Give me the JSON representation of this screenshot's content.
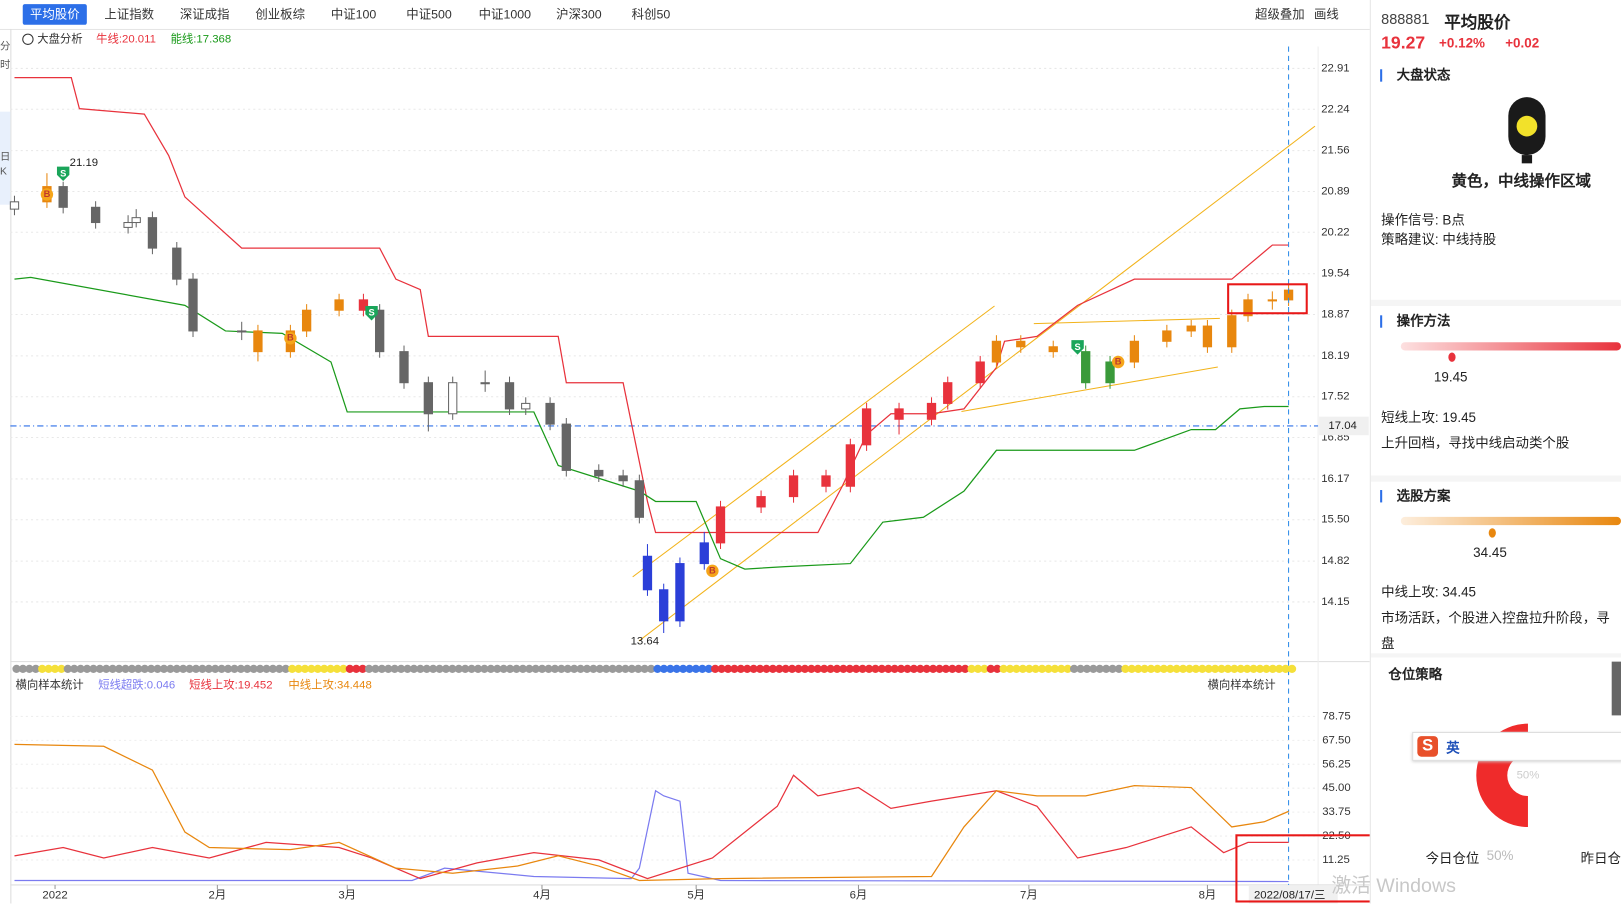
{
  "tabs": [
    "平均股价",
    "上证指数",
    "深证成指",
    "创业板综",
    "中证100",
    "中证500",
    "中证1000",
    "沪深300",
    "科创50"
  ],
  "toolbar": [
    "超级叠加",
    "画线"
  ],
  "side_tabs": [
    "分",
    "时",
    "日",
    "K"
  ],
  "chart_data": [
    {
      "type": "candlestick",
      "title": "大盘分析",
      "xlim": [
        0,
        158
      ],
      "ylim": [
        13.17,
        23.27
      ],
      "yticks": [
        22.91,
        22.24,
        21.56,
        20.89,
        20.22,
        19.54,
        18.87,
        18.19,
        17.52,
        16.85,
        16.17,
        {
          "value": 15.5,
          "label": "15.50"
        },
        14.82,
        14.15
      ],
      "grid": true,
      "candles": {
        "x": [
          0,
          4,
          6,
          10,
          14,
          15,
          17,
          20,
          22,
          28,
          30,
          34,
          36,
          40,
          43,
          45,
          48,
          51,
          54,
          58,
          61,
          63,
          66,
          68,
          72,
          75,
          77,
          78,
          80,
          82,
          85,
          87,
          92,
          96,
          100,
          103,
          105,
          109,
          113,
          115,
          119,
          121,
          124,
          128,
          132,
          135,
          138,
          142,
          145,
          147,
          150,
          152,
          155,
          157
        ],
        "ohlc": [
          [
            20.6,
            20.82,
            20.5,
            20.72
          ],
          [
            20.72,
            21.19,
            20.62,
            20.97
          ],
          [
            20.97,
            21.05,
            20.53,
            20.63
          ],
          [
            20.63,
            20.73,
            20.28,
            20.38
          ],
          [
            20.3,
            20.5,
            20.2,
            20.38
          ],
          [
            20.38,
            20.6,
            20.3,
            20.46
          ],
          [
            20.46,
            20.56,
            19.86,
            19.96
          ],
          [
            19.96,
            20.06,
            19.35,
            19.45
          ],
          [
            19.45,
            19.55,
            18.5,
            18.6
          ],
          [
            18.6,
            18.75,
            18.45,
            18.6
          ],
          [
            18.6,
            18.7,
            18.1,
            18.26
          ],
          [
            18.26,
            18.7,
            18.16,
            18.6
          ],
          [
            18.6,
            19.04,
            18.5,
            18.94
          ],
          [
            18.94,
            19.21,
            18.84,
            19.11
          ],
          [
            19.11,
            19.21,
            18.84,
            18.94
          ],
          [
            18.94,
            19.04,
            18.16,
            18.26
          ],
          [
            18.26,
            18.36,
            17.65,
            17.75
          ],
          [
            17.75,
            17.85,
            16.95,
            17.24
          ],
          [
            17.24,
            17.85,
            17.14,
            17.75
          ],
          [
            17.75,
            17.95,
            17.6,
            17.75
          ],
          [
            17.75,
            17.85,
            17.22,
            17.32
          ],
          [
            17.32,
            17.51,
            17.22,
            17.41
          ],
          [
            17.41,
            17.51,
            16.97,
            17.07
          ],
          [
            17.07,
            17.17,
            16.21,
            16.31
          ],
          [
            16.31,
            16.41,
            16.12,
            16.22
          ],
          [
            16.22,
            16.32,
            16.04,
            16.14
          ],
          [
            16.14,
            16.24,
            15.44,
            15.54
          ],
          [
            14.9,
            15.1,
            14.25,
            14.35
          ],
          [
            14.35,
            14.45,
            13.64,
            13.84
          ],
          [
            13.84,
            14.88,
            13.74,
            14.78
          ],
          [
            14.78,
            15.3,
            14.68,
            15.12
          ],
          [
            15.12,
            15.81,
            15.02,
            15.71
          ],
          [
            15.71,
            15.98,
            15.61,
            15.88
          ],
          [
            15.88,
            16.32,
            15.78,
            16.22
          ],
          [
            16.22,
            16.32,
            15.95,
            16.05
          ],
          [
            16.05,
            16.83,
            15.95,
            16.73
          ],
          [
            16.73,
            17.42,
            16.63,
            17.32
          ],
          [
            17.32,
            17.42,
            16.9,
            17.15
          ],
          [
            17.15,
            17.51,
            17.05,
            17.41
          ],
          [
            17.41,
            17.85,
            17.31,
            17.75
          ],
          [
            17.75,
            18.19,
            17.65,
            18.09
          ],
          [
            18.09,
            18.53,
            17.99,
            18.43
          ],
          [
            18.43,
            18.53,
            18.24,
            18.34
          ],
          [
            18.34,
            18.44,
            18.16,
            18.26
          ],
          [
            18.26,
            18.36,
            17.65,
            17.75
          ],
          [
            17.75,
            18.19,
            17.65,
            18.09
          ],
          [
            18.09,
            18.53,
            17.99,
            18.43
          ],
          [
            18.43,
            18.7,
            18.33,
            18.6
          ],
          [
            18.6,
            18.78,
            18.5,
            18.68
          ],
          [
            18.68,
            18.78,
            18.24,
            18.34
          ],
          [
            18.34,
            18.95,
            18.24,
            18.85
          ],
          [
            18.85,
            19.21,
            18.75,
            19.11
          ],
          [
            19.11,
            19.25,
            18.95,
            19.11
          ],
          [
            19.11,
            19.37,
            19.01,
            19.27
          ]
        ],
        "colors": [
          "#666",
          "#e8870e",
          "#666",
          "#666",
          "#666",
          "#666",
          "#666",
          "#666",
          "#666",
          "#666",
          "#e8870e",
          "#e8870e",
          "#e8870e",
          "#e8870e",
          "#e8323c",
          "#666",
          "#666",
          "#666",
          "#666",
          "#666",
          "#666",
          "#666",
          "#666",
          "#666",
          "#666",
          "#666",
          "#666",
          "#2b3fd8",
          "#2b3fd8",
          "#2b3fd8",
          "#2b3fd8",
          "#e8323c",
          "#e8323c",
          "#e8323c",
          "#e8323c",
          "#e8323c",
          "#e8323c",
          "#e8323c",
          "#e8323c",
          "#e8323c",
          "#e8323c",
          "#e8870e",
          "#e8870e",
          "#e8870e",
          "#3a9a3a",
          "#3a9a3a",
          "#e8870e",
          "#e8870e",
          "#e8870e",
          "#e8870e",
          "#e8870e",
          "#e8870e",
          "#e8870e",
          "#e8870e"
        ]
      },
      "series": [
        {
          "name": "牛线:20.011",
          "color": "#e8323c",
          "x": [
            0,
            7,
            8,
            16,
            19,
            21,
            28,
            45,
            47,
            50,
            51,
            67,
            68,
            75,
            78,
            79,
            99,
            102,
            105,
            108,
            113,
            117,
            121,
            122,
            126,
            131,
            138,
            150,
            155,
            157
          ],
          "values": [
            22.76,
            22.76,
            22.25,
            22.16,
            21.48,
            20.8,
            19.96,
            19.96,
            19.45,
            19.28,
            18.51,
            18.51,
            17.75,
            17.75,
            15.8,
            15.29,
            15.29,
            16.05,
            16.9,
            17.24,
            17.24,
            17.32,
            18.0,
            18.43,
            18.51,
            19.02,
            19.45,
            19.45,
            20.01,
            20.01
          ]
        },
        {
          "name": "能线:17.368",
          "color": "#1a9a1a",
          "x": [
            0,
            2,
            21,
            26,
            33,
            39,
            41,
            64,
            67,
            77,
            79,
            84,
            87,
            90,
            95,
            103,
            107,
            112,
            117,
            121,
            138,
            145,
            148,
            151,
            154,
            157
          ],
          "values": [
            19.45,
            19.48,
            19.02,
            18.6,
            18.56,
            18.09,
            17.27,
            17.27,
            16.39,
            15.97,
            15.8,
            15.8,
            14.86,
            14.69,
            14.73,
            14.78,
            15.46,
            15.54,
            15.97,
            16.64,
            16.64,
            16.98,
            16.98,
            17.32,
            17.36,
            17.36
          ]
        }
      ],
      "ref_line": {
        "value": 17.04,
        "label": "17.04"
      },
      "annotations": [
        {
          "x": 4,
          "value": 21.19
        },
        {
          "x": 80,
          "value": 13.64
        }
      ],
      "signals": [
        {
          "label": "S",
          "x": 6,
          "value": 21.18
        },
        {
          "label": "B",
          "x": 4,
          "value": 20.84
        },
        {
          "label": "B",
          "x": 34,
          "value": 18.48
        },
        {
          "label": "S",
          "x": 44,
          "value": 18.89
        },
        {
          "label": "B",
          "x": 86,
          "value": 14.66
        },
        {
          "label": "S",
          "x": 131,
          "value": 18.33
        },
        {
          "label": "B",
          "x": 136,
          "value": 18.09
        }
      ]
    },
    {
      "type": "line",
      "title": "横向样本统计",
      "xlim": [
        0,
        158
      ],
      "ylim": [
        0,
        87.5
      ],
      "yticks": [
        78.75,
        {
          "value": 67.5,
          "label": "67.50"
        },
        56.25,
        {
          "value": 45,
          "label": "45.00"
        },
        33.75,
        {
          "value": 22.5,
          "label": "22.50"
        },
        11.25
      ],
      "xticks": [
        {
          "value": 5,
          "label": "2022"
        },
        {
          "value": 25,
          "label": "2月"
        },
        {
          "value": 41,
          "label": "3月"
        },
        {
          "value": 65,
          "label": "4月"
        },
        {
          "value": 84,
          "label": "5月"
        },
        {
          "value": 104,
          "label": "6月"
        },
        {
          "value": 125,
          "label": "7月"
        },
        {
          "value": 147,
          "label": "8月"
        }
      ],
      "cursor_label": "2022/08/17/三",
      "series": [
        {
          "name": "短线超跌:0.046",
          "color": "#7b7bf0",
          "x": [
            0,
            49,
            53,
            64,
            76,
            77,
            79,
            80,
            82,
            83,
            87,
            157
          ],
          "values": [
            1.6,
            1.6,
            7.4,
            3.5,
            2.5,
            7.4,
            43.8,
            41.4,
            38.9,
            5.0,
            1.6,
            1.1
          ]
        },
        {
          "name": "短线上攻:19.452",
          "color": "#e8323c",
          "x": [
            0,
            6,
            11,
            17,
            24,
            31,
            40,
            44,
            50,
            57,
            64,
            72,
            78,
            86,
            94,
            96,
            99,
            104,
            108,
            113,
            121,
            126,
            131,
            137,
            145,
            149,
            152,
            157
          ],
          "values": [
            13.2,
            17.1,
            12.2,
            17.1,
            12.2,
            19.5,
            17.1,
            12.2,
            2.5,
            9.9,
            14.7,
            11.3,
            2.5,
            12.2,
            36.5,
            51.1,
            41.4,
            45.3,
            35.5,
            38.9,
            43.8,
            36.5,
            12.2,
            17.1,
            26.8,
            14.7,
            19.5,
            19.5
          ]
        },
        {
          "name": "中线上攻:34.448",
          "color": "#e8870e",
          "x": [
            0,
            11,
            17,
            21,
            24,
            34,
            40,
            47,
            54,
            62,
            67,
            72,
            77,
            87,
            113,
            117,
            121,
            126,
            132,
            138,
            145,
            150,
            154,
            157
          ],
          "values": [
            65.6,
            64.7,
            53.5,
            24.4,
            17.1,
            16.1,
            19.5,
            7.4,
            5.0,
            8.4,
            13.2,
            8.4,
            1.6,
            2.5,
            3.5,
            26.8,
            43.8,
            41.4,
            41.4,
            46.2,
            45.3,
            26.8,
            29.2,
            34.1
          ]
        }
      ]
    }
  ],
  "panel": {
    "code": "888881",
    "name": "平均股价",
    "price": "19.27",
    "change_pct": "+0.12%",
    "change": "+0.02",
    "market_title": "大盘状态",
    "market_state": "黄色，中线操作区域",
    "signal": "操作信号: B点",
    "advice": "策略建议: 中线持股",
    "method_title": "操作方法",
    "method_value": "19.45",
    "method_line": "短线上攻: 19.45",
    "method_desc": "上升回档，寻找中线启动类个股",
    "pick_title": "选股方案",
    "pick_value": "34.45",
    "pick_line": "中线上攻: 34.45",
    "pick_desc": "市场活跃，个股进入控盘拉升阶段，寻",
    "pick_desc2": "盘",
    "position_title": "仓位策略",
    "gauge": "50%",
    "today": "今日仓位",
    "today_value": "50%",
    "yesterday": "昨日仓",
    "ime": "英"
  },
  "watermark": "激活 Windows"
}
